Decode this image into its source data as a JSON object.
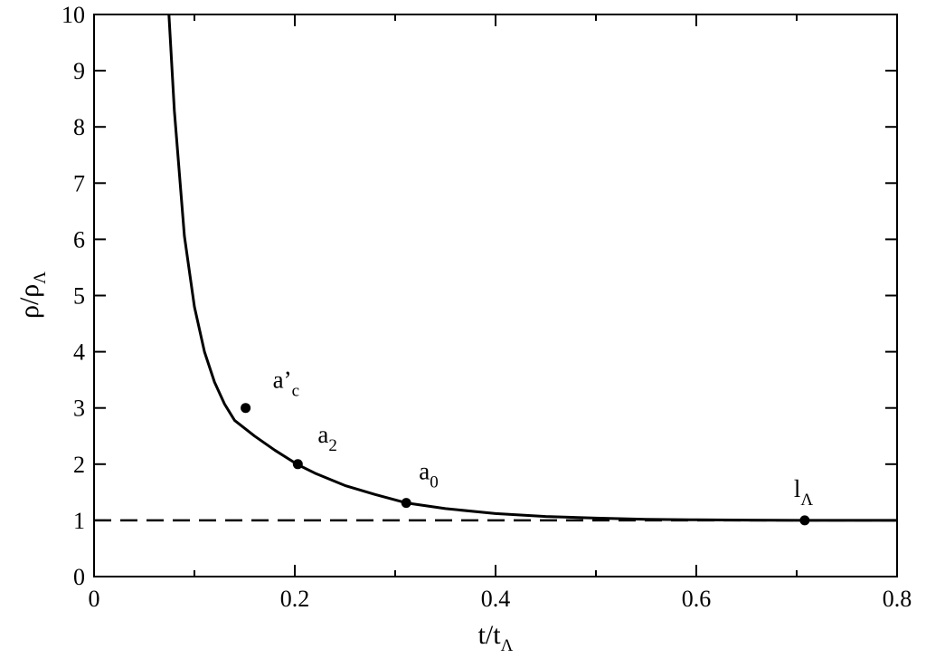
{
  "chart_data": {
    "type": "line",
    "title": "",
    "xlabel": {
      "main": "t/t",
      "sub": "Λ"
    },
    "ylabel": {
      "main": "ρ/ρ",
      "sub": "Λ"
    },
    "xlim": [
      0,
      0.8
    ],
    "ylim": [
      0,
      10
    ],
    "xticks": [
      0,
      0.2,
      0.4,
      0.6,
      0.8
    ],
    "xtick_labels": [
      "0",
      "0.2",
      "0.4",
      "0.6",
      "0.8"
    ],
    "x_minor_ticks": [
      0.1,
      0.3,
      0.5,
      0.7
    ],
    "yticks": [
      0,
      1,
      2,
      3,
      4,
      5,
      6,
      7,
      8,
      9,
      10
    ],
    "ytick_labels": [
      "0",
      "1",
      "2",
      "3",
      "4",
      "5",
      "6",
      "7",
      "8",
      "9",
      "10"
    ],
    "grid": false,
    "series": [
      {
        "style": "solid",
        "x": [
          0.0746,
          0.08,
          0.09,
          0.1,
          0.11,
          0.12,
          0.13,
          0.14,
          0.151,
          0.16,
          0.18,
          0.203,
          0.22,
          0.25,
          0.28,
          0.311,
          0.35,
          0.4,
          0.45,
          0.5,
          0.55,
          0.6,
          0.65,
          0.708,
          0.75,
          0.8
        ],
        "y": [
          10.0,
          8.29,
          6.06,
          4.8,
          4.0,
          3.46,
          3.07,
          2.78,
          2.99,
          2.5,
          2.25,
          1.99,
          1.84,
          1.62,
          1.46,
          1.31,
          1.21,
          1.12,
          1.07,
          1.04,
          1.02,
          1.01,
          1.005,
          1.0,
          1.0,
          1.0
        ]
      },
      {
        "style": "dashed",
        "x": [
          0,
          0.8
        ],
        "y": [
          1,
          1
        ]
      }
    ],
    "points": [
      {
        "x": 0.151,
        "y": 3.0,
        "label": "a’",
        "sub": "c"
      },
      {
        "x": 0.203,
        "y": 2.0,
        "label": "a",
        "sub": "2"
      },
      {
        "x": 0.311,
        "y": 1.31,
        "label": "a",
        "sub": "0"
      },
      {
        "x": 0.708,
        "y": 1.0,
        "label": "l",
        "sub": "Λ"
      }
    ]
  }
}
